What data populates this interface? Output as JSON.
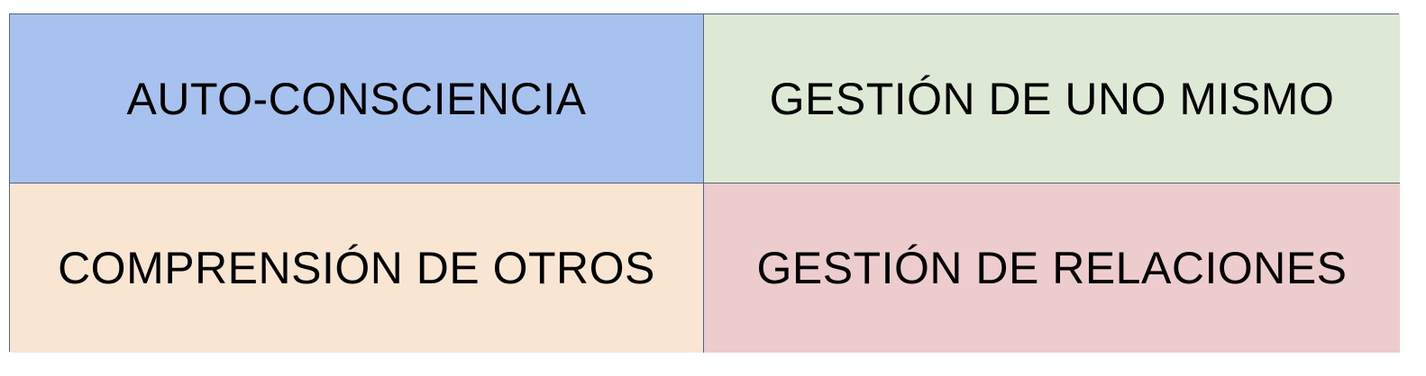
{
  "quadrants": [
    {
      "label": "AUTO-CONSCIENCIA",
      "color": "#a8c2f0"
    },
    {
      "label": "GESTIÓN DE UNO MISMO",
      "color": "#dde8d5"
    },
    {
      "label": "COMPRENSIÓN DE OTROS",
      "color": "#f8e6d2"
    },
    {
      "label": "GESTIÓN DE RELACIONES",
      "color": "#eccccc"
    }
  ]
}
